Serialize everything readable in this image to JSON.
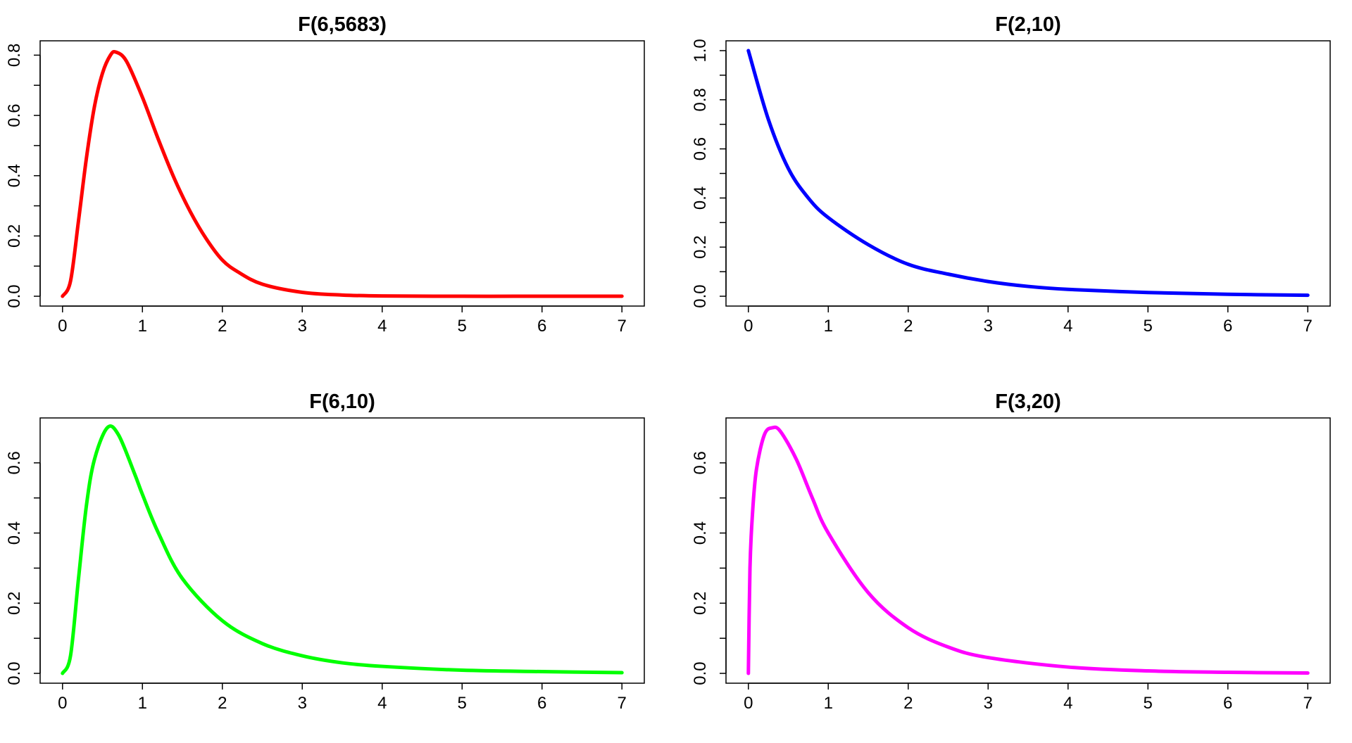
{
  "chart_data": [
    {
      "type": "line",
      "title": "F(6,5683)",
      "color": "#ff0000",
      "df1": 6,
      "df2": 5683,
      "xlim": [
        0,
        7
      ],
      "ylim": [
        0,
        0.815
      ],
      "x_ticks": [
        "0",
        "1",
        "2",
        "3",
        "4",
        "5",
        "6",
        "7"
      ],
      "y_ticks": [
        "0.0",
        "0.2",
        "0.4",
        "0.6",
        "0.8"
      ],
      "series": [
        {
          "x": [
            0,
            0.1,
            0.2,
            0.3,
            0.4,
            0.5,
            0.6,
            0.67,
            0.8,
            1.0,
            1.2,
            1.4,
            1.6,
            1.8,
            2.0,
            2.2,
            2.5,
            3.0,
            3.5,
            4.0,
            5.0,
            6.0,
            7.0
          ],
          "values": [
            0,
            0.05,
            0.25,
            0.46,
            0.63,
            0.74,
            0.8,
            0.81,
            0.78,
            0.66,
            0.52,
            0.39,
            0.28,
            0.19,
            0.12,
            0.08,
            0.04,
            0.013,
            0.004,
            0.001,
            0.0,
            0.0,
            0.0
          ]
        }
      ]
    },
    {
      "type": "line",
      "title": "F(2,10)",
      "color": "#0000ff",
      "df1": 2,
      "df2": 10,
      "xlim": [
        0,
        7
      ],
      "ylim": [
        0,
        1.0
      ],
      "x_ticks": [
        "0",
        "1",
        "2",
        "3",
        "4",
        "5",
        "6",
        "7"
      ],
      "y_ticks": [
        "0.0",
        "0.2",
        "0.4",
        "0.6",
        "0.8",
        "1.0"
      ],
      "series": [
        {
          "x": [
            0,
            0.25,
            0.5,
            0.75,
            1.0,
            1.5,
            2.0,
            2.5,
            3.0,
            3.5,
            4.0,
            5.0,
            6.0,
            7.0
          ],
          "values": [
            1.0,
            0.72,
            0.52,
            0.4,
            0.32,
            0.21,
            0.13,
            0.09,
            0.06,
            0.04,
            0.028,
            0.015,
            0.008,
            0.004
          ]
        }
      ]
    },
    {
      "type": "line",
      "title": "F(6,10)",
      "color": "#00ff00",
      "df1": 6,
      "df2": 10,
      "xlim": [
        0,
        7
      ],
      "ylim": [
        0,
        0.7
      ],
      "x_ticks": [
        "0",
        "1",
        "2",
        "3",
        "4",
        "5",
        "6",
        "7"
      ],
      "y_ticks": [
        "0.0",
        "0.2",
        "0.4",
        "0.6"
      ],
      "series": [
        {
          "x": [
            0,
            0.1,
            0.2,
            0.3,
            0.4,
            0.56,
            0.7,
            0.9,
            1.0,
            1.2,
            1.5,
            2.0,
            2.5,
            3.0,
            3.5,
            4.0,
            5.0,
            6.0,
            7.0
          ],
          "values": [
            0,
            0.05,
            0.27,
            0.48,
            0.61,
            0.7,
            0.68,
            0.57,
            0.51,
            0.4,
            0.27,
            0.15,
            0.085,
            0.05,
            0.03,
            0.02,
            0.009,
            0.005,
            0.002
          ]
        }
      ]
    },
    {
      "type": "line",
      "title": "F(3,20)",
      "color": "#ff00ff",
      "df1": 3,
      "df2": 20,
      "xlim": [
        0,
        7
      ],
      "ylim": [
        0,
        0.7
      ],
      "x_ticks": [
        "0",
        "1",
        "2",
        "3",
        "4",
        "5",
        "6",
        "7"
      ],
      "y_ticks": [
        "0.0",
        "0.2",
        "0.4",
        "0.6"
      ],
      "series": [
        {
          "x": [
            0,
            0.02,
            0.05,
            0.1,
            0.2,
            0.3,
            0.4,
            0.6,
            0.8,
            1.0,
            1.5,
            2.0,
            2.5,
            3.0,
            4.0,
            5.0,
            6.0,
            7.0
          ],
          "values": [
            0,
            0.3,
            0.45,
            0.58,
            0.68,
            0.7,
            0.69,
            0.61,
            0.5,
            0.4,
            0.23,
            0.13,
            0.075,
            0.045,
            0.018,
            0.007,
            0.003,
            0.001
          ]
        }
      ]
    }
  ]
}
